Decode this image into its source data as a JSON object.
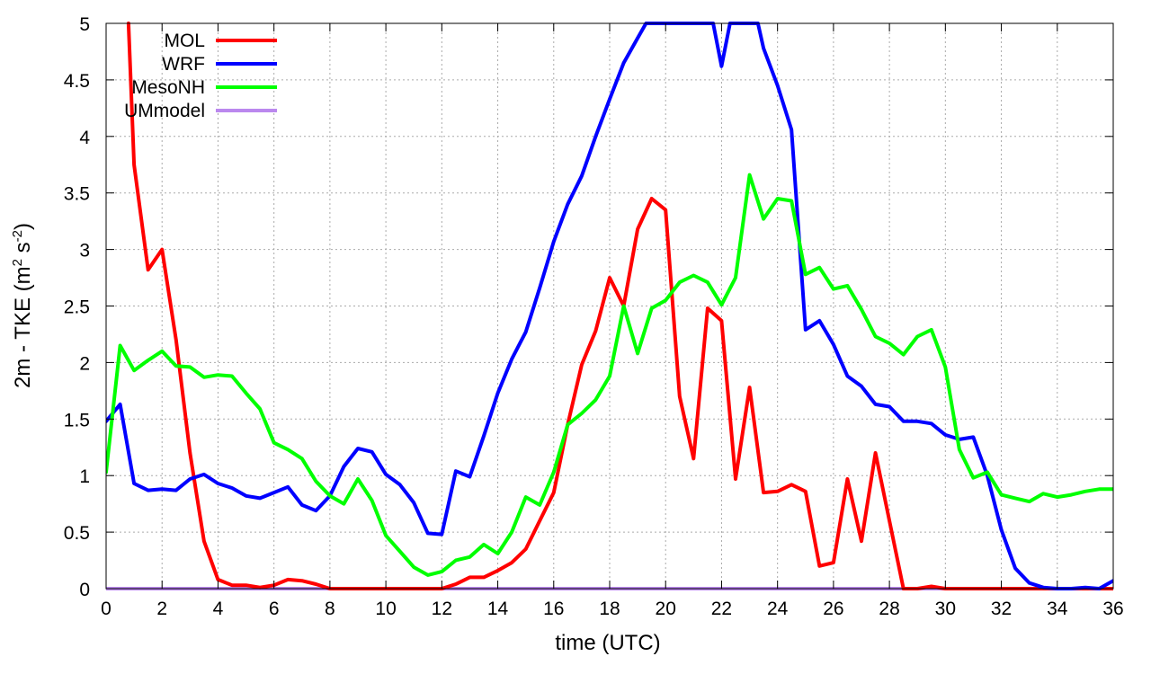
{
  "chart_data": {
    "type": "line",
    "xlabel": "time (UTC)",
    "ylabel_parts": [
      "2m - TKE (m",
      "2",
      " s",
      "-2",
      ")"
    ],
    "xlim": [
      0,
      36
    ],
    "ylim": [
      0,
      5
    ],
    "xticks": [
      0,
      2,
      4,
      6,
      8,
      10,
      12,
      14,
      16,
      18,
      20,
      22,
      24,
      26,
      28,
      30,
      32,
      34,
      36
    ],
    "yticks": [
      0,
      0.5,
      1,
      1.5,
      2,
      2.5,
      3,
      3.5,
      4,
      4.5,
      5
    ],
    "ytick_labels": [
      "0",
      "0.5",
      "1",
      "1.5",
      "2",
      "2.5",
      "3",
      "3.5",
      "4",
      "4.5",
      "5"
    ],
    "grid": true,
    "legend_position": "top-left",
    "series": [
      {
        "name": "MOL",
        "color": "#ff0000",
        "x": [
          0.8,
          1.0,
          1.5,
          2.0,
          2.5,
          3.0,
          3.5,
          4.0,
          4.5,
          5.0,
          5.5,
          6.0,
          6.5,
          7.0,
          7.5,
          8.0,
          12.0,
          12.5,
          13.0,
          13.5,
          14.0,
          14.5,
          15.0,
          15.5,
          16.0,
          16.5,
          17.0,
          17.5,
          18.0,
          18.5,
          19.0,
          19.5,
          20.0,
          20.5,
          21.0,
          21.5,
          22.0,
          22.5,
          23.0,
          23.5,
          24.0,
          24.5,
          25.0,
          25.5,
          26.0,
          26.5,
          27.0,
          27.5,
          28.0,
          28.5,
          29.0,
          29.5,
          30.0,
          30.5,
          31.0,
          31.5,
          32.0,
          33.0,
          34.0,
          35.0,
          36.0
        ],
        "y": [
          5.0,
          3.75,
          2.82,
          3.0,
          2.2,
          1.2,
          0.42,
          0.08,
          0.03,
          0.03,
          0.01,
          0.03,
          0.08,
          0.07,
          0.04,
          0.0,
          0.0,
          0.04,
          0.1,
          0.1,
          0.16,
          0.23,
          0.35,
          0.6,
          0.85,
          1.45,
          1.98,
          2.28,
          2.75,
          2.5,
          3.18,
          3.45,
          3.35,
          1.7,
          1.15,
          2.48,
          2.37,
          0.97,
          1.78,
          0.85,
          0.86,
          0.92,
          0.86,
          0.2,
          0.23,
          0.97,
          0.42,
          1.2,
          0.6,
          0.0,
          0.0,
          0.02,
          0.0,
          0.0,
          0.0,
          0.0,
          0.0,
          0.0,
          0.0,
          0.0,
          0.0
        ]
      },
      {
        "name": "WRF",
        "color": "#0000ff",
        "x": [
          0.0,
          0.5,
          1.0,
          1.5,
          2.0,
          2.5,
          3.0,
          3.5,
          4.0,
          4.5,
          5.0,
          5.5,
          6.0,
          6.5,
          7.0,
          7.5,
          8.0,
          8.5,
          9.0,
          9.5,
          10.0,
          10.5,
          11.0,
          11.5,
          12.0,
          12.5,
          13.0,
          13.5,
          14.0,
          14.5,
          15.0,
          15.5,
          16.0,
          16.5,
          17.0,
          17.5,
          18.0,
          18.5,
          19.0,
          19.3,
          21.7,
          22.0,
          22.3,
          23.3,
          23.5,
          24.0,
          24.5,
          25.0,
          25.5,
          26.0,
          26.5,
          27.0,
          27.5,
          28.0,
          28.5,
          29.0,
          29.5,
          30.0,
          30.5,
          31.0,
          31.5,
          32.0,
          32.5,
          33.0,
          33.5,
          34.0,
          34.5,
          35.0,
          35.5,
          36.0
        ],
        "y": [
          1.48,
          1.63,
          0.93,
          0.87,
          0.88,
          0.87,
          0.97,
          1.01,
          0.93,
          0.89,
          0.82,
          0.8,
          0.85,
          0.9,
          0.74,
          0.69,
          0.82,
          1.08,
          1.24,
          1.21,
          1.01,
          0.92,
          0.76,
          0.49,
          0.48,
          1.04,
          0.99,
          1.35,
          1.73,
          2.03,
          2.27,
          2.66,
          3.07,
          3.4,
          3.65,
          4.0,
          4.33,
          4.65,
          4.87,
          5.0,
          5.0,
          4.62,
          5.0,
          5.0,
          4.78,
          4.45,
          4.06,
          2.29,
          2.37,
          2.16,
          1.88,
          1.79,
          1.63,
          1.61,
          1.48,
          1.48,
          1.46,
          1.36,
          1.32,
          1.34,
          1.0,
          0.52,
          0.18,
          0.05,
          0.01,
          0.0,
          0.0,
          0.01,
          0.0,
          0.07
        ]
      },
      {
        "name": "MesoNH",
        "color": "#00ff00",
        "x": [
          0.0,
          0.5,
          1.0,
          1.5,
          2.0,
          2.5,
          3.0,
          3.5,
          4.0,
          4.5,
          5.0,
          5.5,
          6.0,
          6.5,
          7.0,
          7.5,
          8.0,
          8.5,
          9.0,
          9.5,
          10.0,
          10.5,
          11.0,
          11.5,
          12.0,
          12.5,
          13.0,
          13.5,
          14.0,
          14.5,
          15.0,
          15.5,
          16.0,
          16.5,
          17.0,
          17.5,
          18.0,
          18.5,
          19.0,
          19.5,
          20.0,
          20.5,
          21.0,
          21.5,
          22.0,
          22.5,
          23.0,
          23.5,
          24.0,
          24.5,
          25.0,
          25.5,
          26.0,
          26.5,
          27.0,
          27.5,
          28.0,
          28.5,
          29.0,
          29.5,
          30.0,
          30.5,
          31.0,
          31.5,
          32.0,
          32.5,
          33.0,
          33.5,
          34.0,
          34.5,
          35.0,
          35.5,
          36.0
        ],
        "y": [
          1.03,
          2.15,
          1.93,
          2.02,
          2.1,
          1.97,
          1.96,
          1.87,
          1.89,
          1.88,
          1.73,
          1.59,
          1.29,
          1.23,
          1.15,
          0.95,
          0.82,
          0.75,
          0.97,
          0.78,
          0.47,
          0.33,
          0.19,
          0.12,
          0.15,
          0.25,
          0.28,
          0.39,
          0.31,
          0.5,
          0.81,
          0.74,
          1.03,
          1.45,
          1.55,
          1.67,
          1.88,
          2.5,
          2.08,
          2.48,
          2.55,
          2.71,
          2.77,
          2.71,
          2.51,
          2.75,
          3.66,
          3.27,
          3.45,
          3.43,
          2.78,
          2.84,
          2.65,
          2.68,
          2.47,
          2.23,
          2.17,
          2.07,
          2.23,
          2.29,
          1.96,
          1.23,
          0.98,
          1.03,
          0.83,
          0.8,
          0.77,
          0.84,
          0.81,
          0.83,
          0.86,
          0.88,
          0.88
        ]
      },
      {
        "name": "UMmodel",
        "color": "#bb88ee",
        "x": [
          0,
          36
        ],
        "y": [
          0.0,
          0.0
        ]
      }
    ]
  }
}
